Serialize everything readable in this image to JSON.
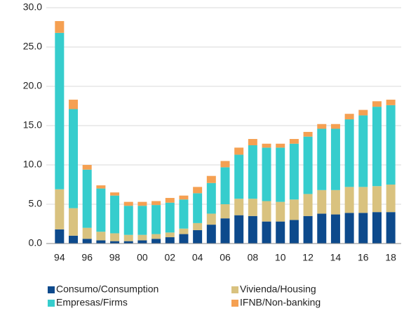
{
  "chart_data": {
    "type": "stacked_bar",
    "categories": [
      "94",
      null,
      "96",
      null,
      "98",
      null,
      "00",
      null,
      "02",
      null,
      "04",
      null,
      "06",
      null,
      "08",
      null,
      "10",
      null,
      "12",
      null,
      "14",
      null,
      "16",
      null,
      "18"
    ],
    "series": [
      {
        "name": "Consumo/Consumption",
        "color": "#0d4a8c",
        "values": [
          1.8,
          1.0,
          0.6,
          0.4,
          0.3,
          0.3,
          0.4,
          0.6,
          0.8,
          1.2,
          1.7,
          2.4,
          3.2,
          3.6,
          3.5,
          2.8,
          2.8,
          3.0,
          3.5,
          3.8,
          3.7,
          3.9,
          3.9,
          4.0,
          4.0
        ]
      },
      {
        "name": "Vivienda/Housing",
        "color": "#d9c27f",
        "values": [
          5.1,
          3.5,
          1.4,
          1.1,
          1.0,
          0.8,
          0.7,
          0.6,
          0.6,
          0.7,
          0.9,
          1.4,
          1.8,
          2.1,
          2.2,
          2.6,
          2.5,
          2.6,
          2.8,
          3.0,
          3.1,
          3.3,
          3.3,
          3.3,
          3.5
        ]
      },
      {
        "name": "Empresas/Firms",
        "color": "#36cdcd",
        "values": [
          19.9,
          12.6,
          7.4,
          5.5,
          4.8,
          3.7,
          3.7,
          3.7,
          3.8,
          3.7,
          3.8,
          3.9,
          4.7,
          5.6,
          6.8,
          6.8,
          6.9,
          7.1,
          7.3,
          7.8,
          7.8,
          8.6,
          9.1,
          10.1,
          10.1
        ]
      },
      {
        "name": "IFNB/Non-banking",
        "color": "#f5a052",
        "values": [
          1.5,
          1.2,
          0.6,
          0.4,
          0.4,
          0.5,
          0.5,
          0.5,
          0.6,
          0.5,
          0.8,
          0.9,
          0.8,
          0.9,
          0.8,
          0.5,
          0.5,
          0.6,
          0.6,
          0.6,
          0.6,
          0.7,
          0.7,
          0.7,
          0.7
        ]
      }
    ],
    "ylim": [
      0,
      30
    ],
    "yticks": [
      {
        "value": 0,
        "label": "0.0"
      },
      {
        "value": 5,
        "label": "5.0"
      },
      {
        "value": 10,
        "label": "10.0"
      },
      {
        "value": 15,
        "label": "15.0"
      },
      {
        "value": 20,
        "label": "20.0"
      },
      {
        "value": 25,
        "label": "25.0"
      },
      {
        "value": 30,
        "label": "30.0"
      }
    ],
    "grid": true
  }
}
